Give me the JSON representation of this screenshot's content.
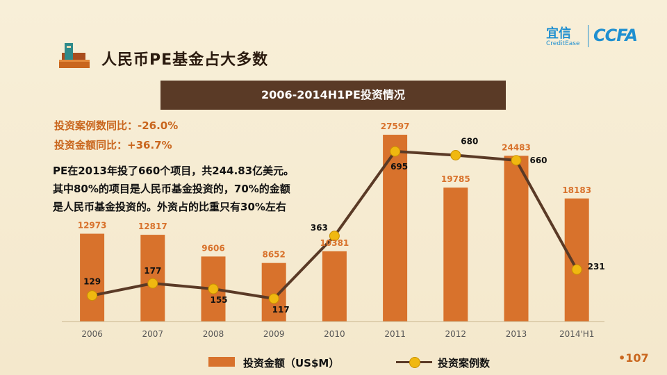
{
  "page": {
    "title": "人民币PE基金占大多数",
    "brand_cn": "宜信",
    "brand_en": "CreditEase",
    "brand_logo": "CCFA",
    "page_number": "•107",
    "accent_color": "#c9661e",
    "title_icon": "books-icon"
  },
  "stats": {
    "cases_yoy": "投资案例数同比：-26.0%",
    "amount_yoy": "投资金额同比：+36.7%"
  },
  "note": {
    "line1": "PE在2013年投了660个项目，共244.83亿美元。",
    "line2": "其中80%的项目是人民币基金投资的，70%的金额",
    "line3": "是人民币基金投资的。外资占的比重只有30%左右"
  },
  "chart_data": {
    "type": "bar",
    "title": "2006-2014H1PE投资情况",
    "categories": [
      "2006",
      "2007",
      "2008",
      "2009",
      "2010",
      "2011",
      "2012",
      "2013",
      "2014'H1"
    ],
    "series": [
      {
        "name": "投资金额（US$M）",
        "type": "bar",
        "color": "#d8722c",
        "values": [
          12973,
          12817,
          9606,
          8652,
          10381,
          27597,
          19785,
          24483,
          18183
        ]
      },
      {
        "name": "投资案例数",
        "type": "line",
        "color": "#5a3a26",
        "marker_color": "#f0b810",
        "values": [
          129,
          177,
          155,
          117,
          363,
          695,
          680,
          660,
          231
        ]
      }
    ],
    "bar_ylim": [
      0,
      30000
    ],
    "line_ylim": [
      0,
      800
    ],
    "grid": false,
    "legend": "bottom"
  }
}
